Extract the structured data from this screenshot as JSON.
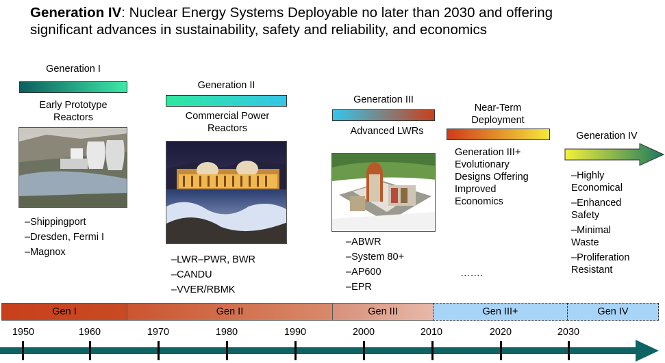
{
  "title": {
    "bold": "Generation IV",
    "rest": ": Nuclear Energy Systems Deployable no later than 2030 and offering",
    "line2": "significant advances in sustainability, safety and reliability, and economics"
  },
  "generations": [
    {
      "name": "Generation I",
      "subtitle": "Early Prototype Reactors",
      "items": [
        "–Shippingport",
        "–Dresden, Fermi I",
        "–Magnox"
      ]
    },
    {
      "name": "Generation II",
      "subtitle": "Commercial Power Reactors",
      "items": [
        "–LWR–PWR, BWR",
        "–CANDU",
        "–VVER/RBMK"
      ]
    },
    {
      "name": "Generation III",
      "subtitle": "Advanced LWRs",
      "items": [
        "–ABWR",
        "–System 80+",
        "–AP600",
        "–EPR"
      ]
    },
    {
      "name": "Near-Term Deployment",
      "subtitle": "",
      "items": [
        "Generation III+",
        "Evolutionary",
        "Designs Offering",
        "Improved",
        "Economics"
      ],
      "ellipsis": "……."
    },
    {
      "name": "Generation IV",
      "subtitle": "",
      "items": [
        "–Highly Economical",
        "–Enhanced Safety",
        "–Minimal Waste",
        "–Proliferation Resistant"
      ]
    }
  ],
  "timeline": {
    "segments": [
      "Gen I",
      "Gen II",
      "Gen III",
      "Gen III+",
      "Gen IV"
    ],
    "years": [
      "1950",
      "1960",
      "1970",
      "1980",
      "1990",
      "2000",
      "2010",
      "2020",
      "2030"
    ]
  },
  "colors": {
    "gen1_bar": [
      "#0d5e5e",
      "#3de8a8"
    ],
    "gen2_bar": [
      "#2ee8a0",
      "#34c6e8"
    ],
    "gen3_bar": [
      "#34c6e8",
      "#c8401c"
    ],
    "near_term_bar": [
      "#d03a1a",
      "#f5e83a"
    ],
    "gen4_arrow": [
      "#f5f03a",
      "#1c7a5e"
    ],
    "timeline_arrow": "#0e6464"
  }
}
